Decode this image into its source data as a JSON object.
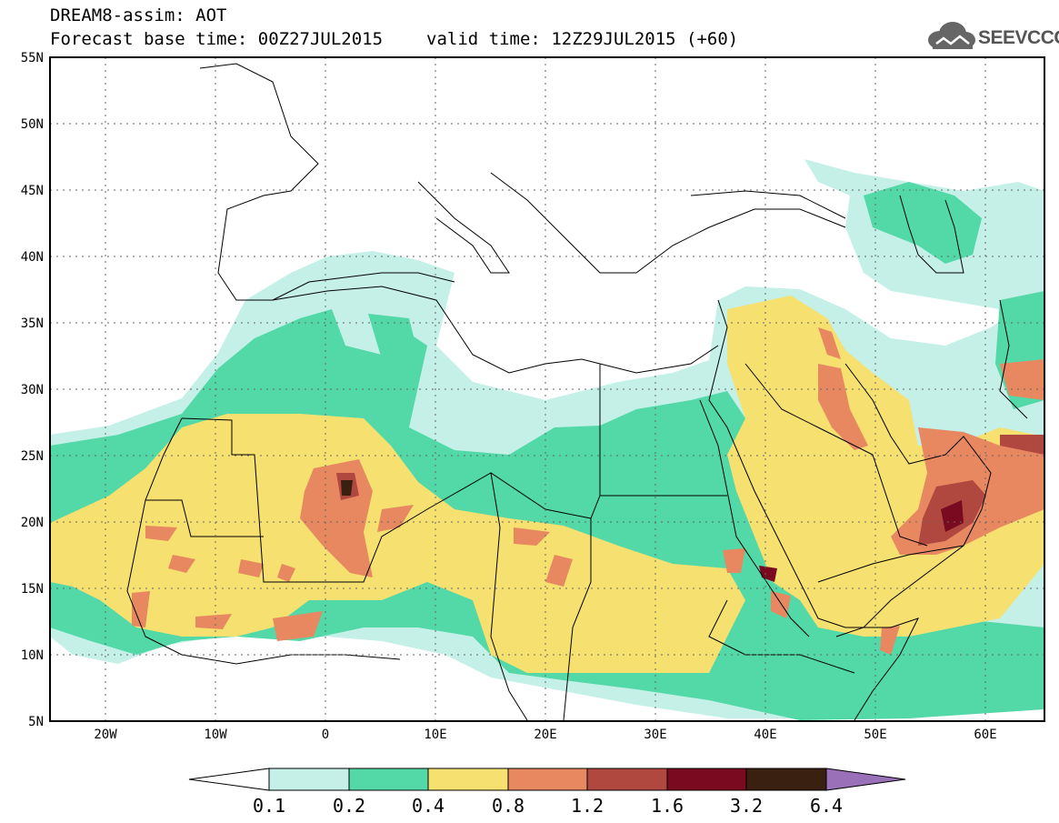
{
  "title": {
    "product": "DREAM8-assim: AOT",
    "base_time": "Forecast base time: 00Z27JUL2015",
    "valid_time": "valid time: 12Z29JUL2015 (+60)"
  },
  "logo": {
    "text": "SEEVCCC",
    "icon": "cloud-icon"
  },
  "map": {
    "lon_range": [
      -25,
      65
    ],
    "lat_range": [
      5,
      55
    ],
    "lat_labels": [
      "55N",
      "50N",
      "45N",
      "40N",
      "35N",
      "30N",
      "25N",
      "20N",
      "15N",
      "10N",
      "5N"
    ],
    "lon_labels": [
      "20W",
      "10W",
      "0",
      "10E",
      "20E",
      "30E",
      "40E",
      "50E",
      "60E"
    ]
  },
  "colorbar": {
    "labels": [
      "0.1",
      "0.2",
      "0.4",
      "0.8",
      "1.2",
      "1.6",
      "3.2",
      "6.4"
    ],
    "colors": [
      "#c4f0e8",
      "#53d8a8",
      "#f5e070",
      "#e88860",
      "#b04840",
      "#7a0a20",
      "#3a2010",
      "#9a70b8"
    ]
  }
}
